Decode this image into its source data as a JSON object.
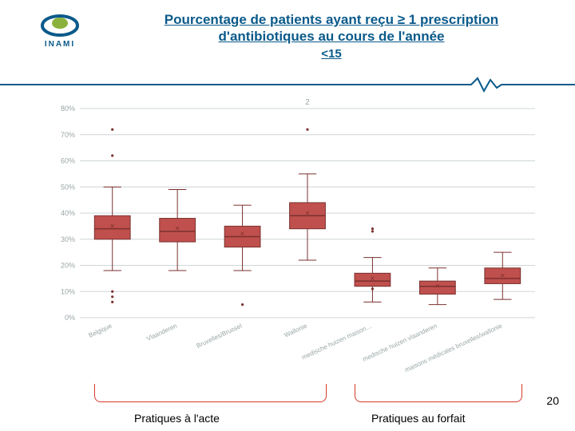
{
  "logo": {
    "text": "INAMI",
    "primary_color": "#0a5a8a",
    "accent_color": "#8bb13c"
  },
  "title": {
    "line1": "Pourcentage de patients ayant reçu ≥ 1 prescription",
    "line2": "d'antibiotiques au cours de l'année",
    "sub": "<15",
    "color": "#0a5a8a"
  },
  "page_number": "20",
  "bottom_labels": {
    "left": "Pratiques à l'acte",
    "right": "Pratiques au forfait"
  },
  "chart": {
    "type": "boxplot",
    "top_sublabel": "2",
    "background_color": "#ffffff",
    "grid_color": "#cfd6d6",
    "axis_text_color": "#9aa6a6",
    "box_fill": "#c0504d",
    "box_stroke": "#7a312f",
    "whisker_color": "#7a312f",
    "median_color": "#7a312f",
    "mean_marker": "×",
    "outlier_color": "#7a312f",
    "y": {
      "min": 0,
      "max": 80,
      "step": 10,
      "suffix": "%"
    },
    "categories": [
      "Belgique",
      "Vlaanderen",
      "Bruxelles/Brussel",
      "Wallonie",
      "medische huizen maison…",
      "medische huizen vlaanderen",
      "maisons médicales bruxelles/wallonie"
    ],
    "boxes": [
      {
        "q1": 30,
        "median": 34,
        "q3": 39,
        "whisker_lo": 18,
        "whisker_hi": 50,
        "mean": 35,
        "outliers": [
          72,
          62,
          10,
          8,
          6
        ]
      },
      {
        "q1": 29,
        "median": 33,
        "q3": 38,
        "whisker_lo": 18,
        "whisker_hi": 49,
        "mean": 34,
        "outliers": []
      },
      {
        "q1": 27,
        "median": 31,
        "q3": 35,
        "whisker_lo": 18,
        "whisker_hi": 43,
        "mean": 32,
        "outliers": [
          5
        ]
      },
      {
        "q1": 34,
        "median": 39,
        "q3": 44,
        "whisker_lo": 22,
        "whisker_hi": 55,
        "mean": 40,
        "outliers": [
          72
        ]
      },
      {
        "q1": 12,
        "median": 14,
        "q3": 17,
        "whisker_lo": 6,
        "whisker_hi": 23,
        "mean": 15,
        "outliers": [
          34,
          33,
          11
        ]
      },
      {
        "q1": 9,
        "median": 12,
        "q3": 14,
        "whisker_lo": 5,
        "whisker_hi": 19,
        "mean": 12,
        "outliers": []
      },
      {
        "q1": 13,
        "median": 15,
        "q3": 19,
        "whisker_lo": 7,
        "whisker_hi": 25,
        "mean": 16,
        "outliers": []
      }
    ],
    "brackets": [
      {
        "from_index": 0,
        "to_index": 3,
        "stroke": "#d43a2a"
      },
      {
        "from_index": 4,
        "to_index": 6,
        "stroke": "#d43a2a"
      }
    ]
  }
}
